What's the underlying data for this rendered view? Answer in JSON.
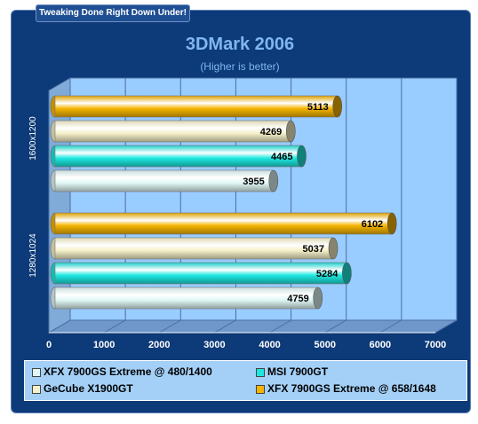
{
  "banner": "Tweaking Done Right Down Under!",
  "colors": {
    "frame": "#0d3a78",
    "plot_bg": "#99ccff",
    "legend_bg": "#a4d0f7",
    "title": "#7fb7ef"
  },
  "chart_data": {
    "type": "bar",
    "orientation": "horizontal",
    "title": "3DMark 2006",
    "subtitle": "(Higher is better)",
    "xlabel": "",
    "ylabel": "",
    "xlim": [
      0,
      7000
    ],
    "xticks": [
      "0",
      "1000",
      "2000",
      "3000",
      "4000",
      "5000",
      "6000",
      "7000"
    ],
    "grid": true,
    "legend_position": "bottom",
    "categories": [
      "1600x1200",
      "1280x1024"
    ],
    "series": [
      {
        "name": "XFX 7900GS Extreme @ 658/1648",
        "color": "#f5b400",
        "values": [
          5113,
          6102
        ]
      },
      {
        "name": "GeCube X1900GT",
        "color": "#f5f0c8",
        "values": [
          4269,
          5037
        ]
      },
      {
        "name": "MSI 7900GT",
        "color": "#1de8e0",
        "values": [
          4465,
          5284
        ]
      },
      {
        "name": "XFX 7900GS Extreme @ 480/1400",
        "color": "#dff7f5",
        "values": [
          3955,
          4759
        ]
      }
    ]
  },
  "legend": [
    {
      "label": "XFX 7900GS Extreme @ 480/1400",
      "color": "#dff7f5"
    },
    {
      "label": "MSI 7900GT",
      "color": "#1de8e0"
    },
    {
      "label": "GeCube X1900GT",
      "color": "#f5f0c8"
    },
    {
      "label": "XFX 7900GS Extreme @ 658/1648",
      "color": "#f5b400"
    }
  ]
}
